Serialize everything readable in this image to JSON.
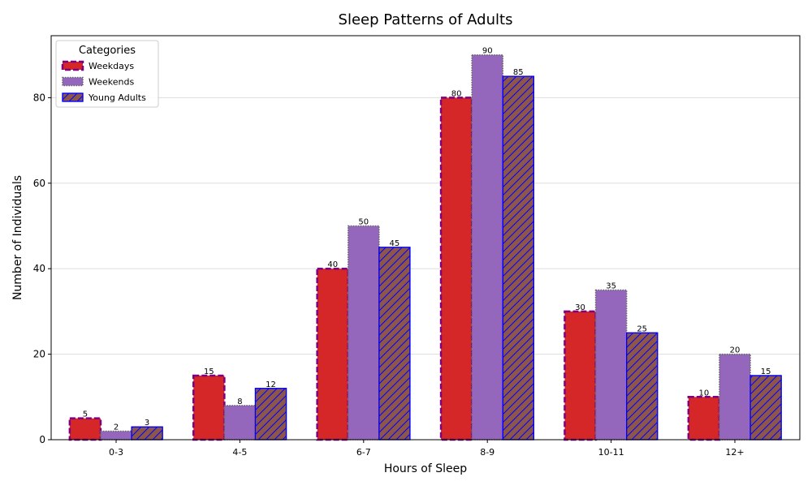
{
  "chart_data": {
    "type": "bar",
    "title": "Sleep Patterns of Adults",
    "xlabel": "Hours of Sleep",
    "ylabel": "Number of Individuals",
    "categories": [
      "0-3",
      "4-5",
      "6-7",
      "8-9",
      "10-11",
      "12+"
    ],
    "series": [
      {
        "name": "Weekdays",
        "values": [
          5,
          15,
          40,
          80,
          30,
          10
        ],
        "color": "#d62728",
        "edge_color": "#800080",
        "edge_style": "dashed"
      },
      {
        "name": "Weekends",
        "values": [
          2,
          8,
          50,
          90,
          35,
          20
        ],
        "color": "#9467bd",
        "edge_color": "#666666",
        "edge_style": "dotted"
      },
      {
        "name": "Young Adults",
        "values": [
          3,
          12,
          45,
          85,
          25,
          15
        ],
        "color": "#8c564b",
        "edge_color": "#0000ff",
        "edge_style": "solid",
        "hatch": "diagonal"
      }
    ],
    "ylim": [
      0,
      94.5
    ],
    "yticks": [
      0,
      20,
      40,
      60,
      80
    ],
    "grid": "y",
    "legend": {
      "title": "Categories",
      "placement": "top-left"
    }
  }
}
